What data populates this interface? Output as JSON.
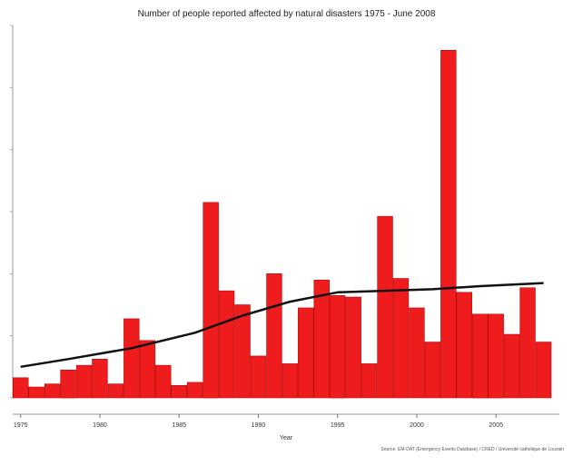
{
  "chart_data": {
    "type": "bar",
    "title": "Number of people reported affected by natural disasters 1975 - June 2008",
    "xlabel": "Year",
    "ylabel": "",
    "x_tick_labels": [
      "1975",
      "1980",
      "1985",
      "1990",
      "1995",
      "2000",
      "2005"
    ],
    "x_ticks": [
      1975,
      1980,
      1985,
      1990,
      1995,
      2000,
      2005
    ],
    "categories": [
      1975,
      1976,
      1977,
      1978,
      1979,
      1980,
      1981,
      1982,
      1983,
      1984,
      1985,
      1986,
      1987,
      1988,
      1989,
      1990,
      1991,
      1992,
      1993,
      1994,
      1995,
      1996,
      1997,
      1998,
      1999,
      2000,
      2001,
      2002,
      2003,
      2004,
      2005,
      2006,
      2007,
      2008
    ],
    "values": [
      6.5,
      3.5,
      4.5,
      9,
      10.5,
      12.5,
      4.5,
      25.5,
      18.5,
      10.5,
      4,
      5,
      63,
      34.5,
      30,
      13.5,
      40,
      11,
      29,
      38,
      33,
      32.5,
      11,
      58.5,
      38.5,
      29,
      18,
      112,
      34,
      27,
      27,
      20.5,
      35.5,
      18
    ],
    "trend": [
      [
        1975,
        10
      ],
      [
        1978,
        12.5
      ],
      [
        1982,
        16
      ],
      [
        1986,
        21
      ],
      [
        1989,
        26.5
      ],
      [
        1992,
        31
      ],
      [
        1995,
        34
      ],
      [
        1998,
        34.5
      ],
      [
        2001,
        35
      ],
      [
        2004,
        36
      ],
      [
        2008,
        37
      ]
    ],
    "ylim": [
      0,
      120
    ],
    "xlim": [
      1974.5,
      2009
    ],
    "bar_color": "#ee1c1c",
    "bar_edge_color": "#aa0000",
    "trend_color": "#111111",
    "grid": false,
    "footnote": "Source: EM-DAT (Emergency Events Database) / CRED / Université catholique de Louvain"
  }
}
